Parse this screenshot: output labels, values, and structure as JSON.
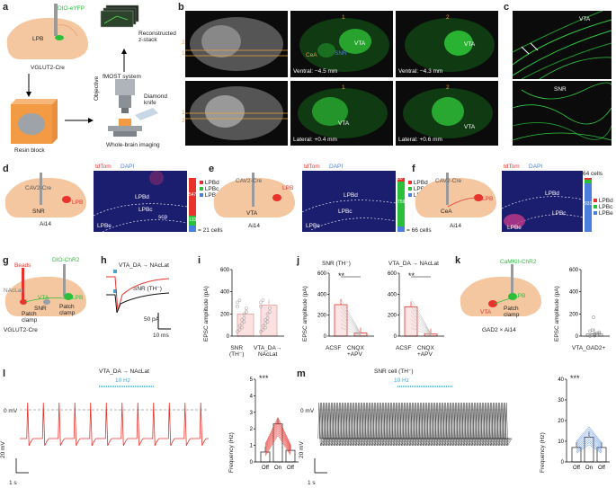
{
  "panels": {
    "a": {
      "letter": "a",
      "construct": "DIO-eYFP",
      "region": "LPB",
      "mouse": "VGLUT2-Cre",
      "z_stack": "Reconstructed\nz-stack",
      "fmost": "fMOST system",
      "knife": "Diamond\nknife",
      "objective": "Objective",
      "resin": "Resin block",
      "imaging": "Whole-brain imaging"
    },
    "b": {
      "letter": "b",
      "vta": "VTA",
      "snr": "SNR",
      "cea": "CeA",
      "line1": "1",
      "line2": "2",
      "ventral1": "Ventral: −4.5 mm",
      "ventral2": "Ventral: −4.3 mm",
      "lateral1": "Lateral: +0.4 mm",
      "lateral2": "Lateral: +0.6 mm"
    },
    "c": {
      "letter": "c",
      "vta": "VTA",
      "snr": "SNR"
    },
    "d": {
      "letter": "d",
      "virus": "CAV2-Cre",
      "lpb": "LPB",
      "snr": "SNR",
      "mouse": "Ai14",
      "tdtom": "tdTom",
      "dapi": "DAPI",
      "lpbd": "LPBd",
      "lpbc": "LPBc",
      "lpbe": "LPBe",
      "scp": "scp",
      "count_main": "547",
      "count_small": "133",
      "total": "= 21 cells",
      "legend": [
        {
          "label": "LPBd",
          "color": "#e8332d"
        },
        {
          "label": "LPBc",
          "color": "#2bbf3b"
        },
        {
          "label": "LPBe",
          "color": "#4a7fe0"
        }
      ]
    },
    "e": {
      "letter": "e",
      "virus": "CAV2-Cre",
      "lpb": "LPB",
      "vta": "VTA",
      "mouse": "Ai14",
      "tdtom": "tdTom",
      "dapi": "DAPI",
      "lpbd": "LPBd",
      "lpbc": "LPBc",
      "lpbe": "LPBe",
      "count_main": "759",
      "count_small": "80",
      "total": "= 66 cells",
      "legend": [
        {
          "label": "LPBd",
          "color": "#e8332d"
        },
        {
          "label": "LPBc",
          "color": "#2bbf3b"
        },
        {
          "label": "LPBe",
          "color": "#4a7fe0"
        }
      ]
    },
    "f": {
      "letter": "f",
      "virus": "CAV2-Cre",
      "lpb": "LPB",
      "cea": "CeA",
      "mouse": "Ai14",
      "tdtom": "tdTom",
      "dapi": "DAPI",
      "lpbd": "LPBd",
      "lpbc": "LPBc",
      "lpbe": "LPBe",
      "count_main": "931",
      "total": "64 cells",
      "legend": [
        {
          "label": "LPBd",
          "color": "#e8332d"
        },
        {
          "label": "LPBc",
          "color": "#2bbf3b"
        },
        {
          "label": "LPBe",
          "color": "#4a7fe0"
        }
      ]
    },
    "g": {
      "letter": "g",
      "beads": "Beads",
      "construct": "DIO-ChR2",
      "lpb": "LPB",
      "nacl": "NAcLat",
      "vta": "VTA",
      "snr": "SNR",
      "patch1": "Patch\nclamp",
      "patch2": "Patch\nclamp",
      "mouse": "VGLUT2-Cre"
    },
    "h": {
      "letter": "h",
      "trace1": "VTA_DA → NAcLat",
      "trace2": "SNR (TH⁻)",
      "scale_y": "50 pA",
      "scale_x": "10 ms"
    },
    "i": {
      "letter": "i",
      "ylabel": "EPSC amplitude (pA)",
      "ticks": [
        "0",
        "200",
        "400",
        "600"
      ],
      "groups": [
        "SNR\n(TH⁻)",
        "VTA_DA→\nNAcLat"
      ],
      "chart_data": {
        "type": "bar",
        "categories": [
          "SNR (TH⁻)",
          "VTA_DA→NAcLat"
        ],
        "values": [
          200,
          280
        ],
        "ylim": [
          0,
          600
        ],
        "ylabel": "EPSC amplitude (pA)"
      }
    },
    "j": {
      "letter": "j",
      "title1": "SNR (TH⁻)",
      "title2": "VTA_DA → NAcLat",
      "ylabel": "EPSC amplitude (pA)",
      "ticks1": [
        "0",
        "200",
        "400",
        "600"
      ],
      "ticks2": [
        "0",
        "200",
        "400",
        "600"
      ],
      "x1": "ACSF",
      "x2": "CNQX\n+APV",
      "sig": "**",
      "chart_data": [
        {
          "type": "bar",
          "title": "SNR (TH⁻)",
          "categories": [
            "ACSF",
            "CNQX+APV"
          ],
          "values": [
            300,
            30
          ],
          "ylim": [
            0,
            600
          ]
        },
        {
          "type": "bar",
          "title": "VTA_DA → NAcLat",
          "categories": [
            "ACSF",
            "CNQX+APV"
          ],
          "values": [
            280,
            20
          ],
          "ylim": [
            0,
            600
          ]
        }
      ]
    },
    "k": {
      "letter": "k",
      "construct": "CaMKII-ChR2",
      "lpb": "LPB",
      "vta": "VTA",
      "patch": "Patch\nclamp",
      "mouse": "GAD2 × Ai14",
      "ylabel": "EPSC amplitude (pA)",
      "ticks": [
        "0",
        "200",
        "400",
        "600"
      ],
      "xcat": "VTA_GAD2+",
      "chart_data": {
        "type": "bar",
        "categories": [
          "VTA_GAD2+"
        ],
        "values": [
          20
        ],
        "ylim": [
          0,
          600
        ]
      }
    },
    "l": {
      "letter": "l",
      "title": "VTA_DA → NAcLat",
      "stim": "10 Hz",
      "zero": "0 mV",
      "scale_y": "20 mV",
      "scale_x": "1 s",
      "ylabel": "Frequency (Hz)",
      "ticks": [
        "0",
        "1",
        "2",
        "3",
        "4",
        "5"
      ],
      "cats": [
        "Off",
        "On",
        "Off"
      ],
      "sig": "***",
      "chart_data": {
        "type": "bar",
        "categories": [
          "Off",
          "On",
          "Off"
        ],
        "values": [
          0.6,
          2.3,
          0.7
        ],
        "ylim": [
          0,
          5
        ],
        "ylabel": "Frequency (Hz)"
      }
    },
    "m": {
      "letter": "m",
      "title": "SNR cell (TH⁻)",
      "stim": "10 Hz",
      "zero": "0 mV",
      "scale_y": "20 mV",
      "scale_x": "1 s",
      "ylabel": "Frequency (Hz)",
      "ticks": [
        "0",
        "10",
        "20",
        "30",
        "40"
      ],
      "cats": [
        "Off",
        "On",
        "Off"
      ],
      "sig": "***",
      "chart_data": {
        "type": "bar",
        "categories": [
          "Off",
          "On",
          "Off"
        ],
        "values": [
          7,
          12,
          7
        ],
        "ylim": [
          0,
          40
        ],
        "ylabel": "Frequency (Hz)"
      }
    }
  }
}
